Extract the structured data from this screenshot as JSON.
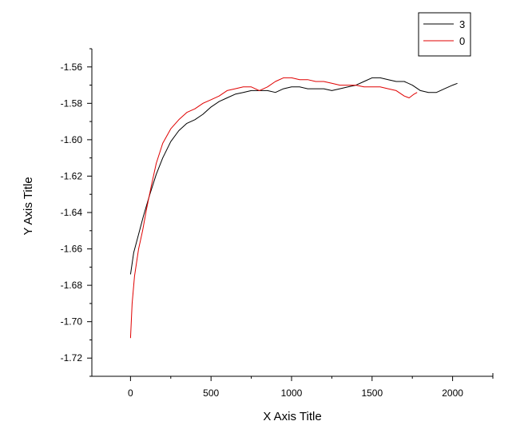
{
  "chart_data": {
    "type": "line",
    "xlabel": "X Axis Title",
    "ylabel": "Y Axis Title",
    "xlim": [
      -240,
      2250
    ],
    "ylim": [
      -1.73,
      -1.55
    ],
    "x_ticks": [
      0,
      500,
      1000,
      1500,
      2000
    ],
    "x_tick_labels": [
      "0",
      "500",
      "1000",
      "1500",
      "2000"
    ],
    "y_ticks": [
      -1.72,
      -1.7,
      -1.68,
      -1.66,
      -1.64,
      -1.62,
      -1.6,
      -1.58,
      -1.56
    ],
    "y_tick_labels": [
      "-1.72",
      "-1.70",
      "-1.68",
      "-1.66",
      "-1.64",
      "-1.62",
      "-1.60",
      "-1.58",
      "-1.56"
    ],
    "grid": false,
    "legend_position": "top-right",
    "series": [
      {
        "name": "3",
        "color": "#000000",
        "x": [
          0,
          20,
          50,
          80,
          120,
          160,
          200,
          250,
          300,
          350,
          400,
          450,
          500,
          550,
          600,
          650,
          700,
          750,
          800,
          850,
          900,
          950,
          1000,
          1050,
          1100,
          1150,
          1200,
          1250,
          1300,
          1350,
          1400,
          1450,
          1500,
          1550,
          1600,
          1650,
          1700,
          1750,
          1800,
          1850,
          1900,
          1950,
          2000,
          2030
        ],
        "y": [
          -1.674,
          -1.662,
          -1.652,
          -1.642,
          -1.63,
          -1.619,
          -1.61,
          -1.601,
          -1.595,
          -1.591,
          -1.589,
          -1.586,
          -1.582,
          -1.579,
          -1.577,
          -1.575,
          -1.574,
          -1.573,
          -1.573,
          -1.573,
          -1.574,
          -1.572,
          -1.571,
          -1.571,
          -1.572,
          -1.572,
          -1.572,
          -1.573,
          -1.572,
          -1.571,
          -1.57,
          -1.568,
          -1.566,
          -1.566,
          -1.567,
          -1.568,
          -1.568,
          -1.57,
          -1.573,
          -1.574,
          -1.574,
          -1.572,
          -1.57,
          -1.569
        ]
      },
      {
        "name": "0",
        "color": "#e00000",
        "x": [
          0,
          10,
          25,
          50,
          75,
          100,
          130,
          160,
          200,
          250,
          300,
          350,
          400,
          450,
          500,
          550,
          600,
          650,
          700,
          750,
          800,
          850,
          900,
          950,
          1000,
          1050,
          1100,
          1150,
          1200,
          1250,
          1300,
          1350,
          1400,
          1450,
          1500,
          1550,
          1600,
          1650,
          1700,
          1730,
          1760,
          1780
        ],
        "y": [
          -1.709,
          -1.69,
          -1.675,
          -1.66,
          -1.65,
          -1.638,
          -1.625,
          -1.613,
          -1.602,
          -1.594,
          -1.589,
          -1.585,
          -1.583,
          -1.58,
          -1.578,
          -1.576,
          -1.573,
          -1.572,
          -1.571,
          -1.571,
          -1.573,
          -1.571,
          -1.568,
          -1.566,
          -1.566,
          -1.567,
          -1.567,
          -1.568,
          -1.568,
          -1.569,
          -1.57,
          -1.57,
          -1.57,
          -1.571,
          -1.571,
          -1.571,
          -1.572,
          -1.573,
          -1.576,
          -1.577,
          -1.575,
          -1.574
        ]
      }
    ]
  }
}
